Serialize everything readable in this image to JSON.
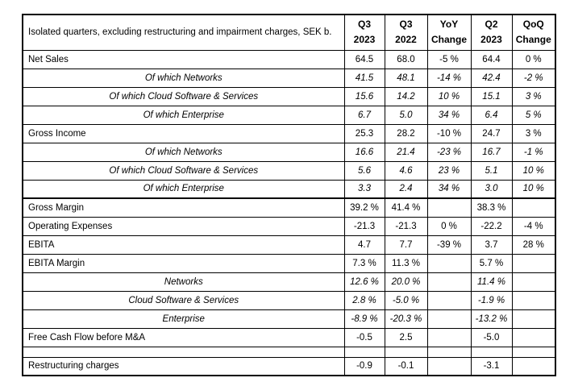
{
  "colors": {
    "background": "#ffffff",
    "text": "#000000",
    "border": "#000000"
  },
  "chart_data": {
    "type": "table",
    "title": "Isolated quarters, excluding restructuring and impairment charges, SEK b.",
    "header": {
      "columns": [
        {
          "line1": "Q3",
          "line2": "2023"
        },
        {
          "line1": "Q3",
          "line2": "2022"
        },
        {
          "line1": "YoY",
          "line2": "Change"
        },
        {
          "line1": "Q2",
          "line2": "2023"
        },
        {
          "line1": "QoQ",
          "line2": "Change"
        }
      ]
    },
    "rows": [
      {
        "label": "Net Sales",
        "style": "main",
        "thick_top": false,
        "values": [
          "64.5",
          "68.0",
          "-5 %",
          "64.4",
          "0 %"
        ]
      },
      {
        "label": "Of which Networks",
        "style": "subitem",
        "thick_top": false,
        "values": [
          "41.5",
          "48.1",
          "-14 %",
          "42.4",
          "-2 %"
        ]
      },
      {
        "label": "Of which Cloud Software & Services",
        "style": "subitem",
        "thick_top": false,
        "values": [
          "15.6",
          "14.2",
          "10 %",
          "15.1",
          "3 %"
        ]
      },
      {
        "label": "Of which Enterprise",
        "style": "subitem",
        "thick_top": false,
        "values": [
          "6.7",
          "5.0",
          "34 %",
          "6.4",
          "5 %"
        ]
      },
      {
        "label": "Gross Income",
        "style": "main",
        "thick_top": false,
        "values": [
          "25.3",
          "28.2",
          "-10 %",
          "24.7",
          "3 %"
        ]
      },
      {
        "label": "Of which Networks",
        "style": "subitem",
        "thick_top": false,
        "values": [
          "16.6",
          "21.4",
          "-23 %",
          "16.7",
          "-1 %"
        ]
      },
      {
        "label": "Of which Cloud Software & Services",
        "style": "subitem",
        "thick_top": false,
        "values": [
          "5.6",
          "4.6",
          "23 %",
          "5.1",
          "10 %"
        ]
      },
      {
        "label": "Of which Enterprise",
        "style": "subitem",
        "thick_top": false,
        "values": [
          "3.3",
          "2.4",
          "34 %",
          "3.0",
          "10 %"
        ]
      },
      {
        "label": "Gross Margin",
        "style": "main",
        "thick_top": true,
        "values": [
          "39.2 %",
          "41.4 %",
          "",
          "38.3 %",
          ""
        ]
      },
      {
        "label": "Operating Expenses",
        "style": "main",
        "thick_top": false,
        "values": [
          "-21.3",
          "-21.3",
          "0 %",
          "-22.2",
          "-4 %"
        ]
      },
      {
        "label": "EBITA",
        "style": "main",
        "thick_top": false,
        "values": [
          "4.7",
          "7.7",
          "-39 %",
          "3.7",
          "28 %"
        ]
      },
      {
        "label": "EBITA Margin",
        "style": "main",
        "thick_top": false,
        "values": [
          "7.3 %",
          "11.3 %",
          "",
          "5.7 %",
          ""
        ]
      },
      {
        "label": "Networks",
        "style": "subitem",
        "thick_top": false,
        "values": [
          "12.6 %",
          "20.0 %",
          "",
          "11.4 %",
          ""
        ]
      },
      {
        "label": "Cloud Software & Services",
        "style": "subitem",
        "thick_top": false,
        "values": [
          "2.8 %",
          "-5.0 %",
          "",
          "-1.9 %",
          ""
        ]
      },
      {
        "label": "Enterprise",
        "style": "subitem",
        "thick_top": false,
        "values": [
          "-8.9 %",
          "-20.3 %",
          "",
          "-13.2 %",
          ""
        ]
      },
      {
        "label": "Free Cash Flow before M&A",
        "style": "main",
        "thick_top": false,
        "values": [
          "-0.5",
          "2.5",
          "",
          "-5.0",
          ""
        ]
      },
      {
        "label": "",
        "style": "blank",
        "thick_top": false,
        "values": [
          "",
          "",
          "",
          "",
          ""
        ]
      },
      {
        "label": "Restructuring charges",
        "style": "main",
        "thick_top": false,
        "values": [
          "-0.9",
          "-0.1",
          "",
          "-3.1",
          ""
        ]
      }
    ]
  }
}
